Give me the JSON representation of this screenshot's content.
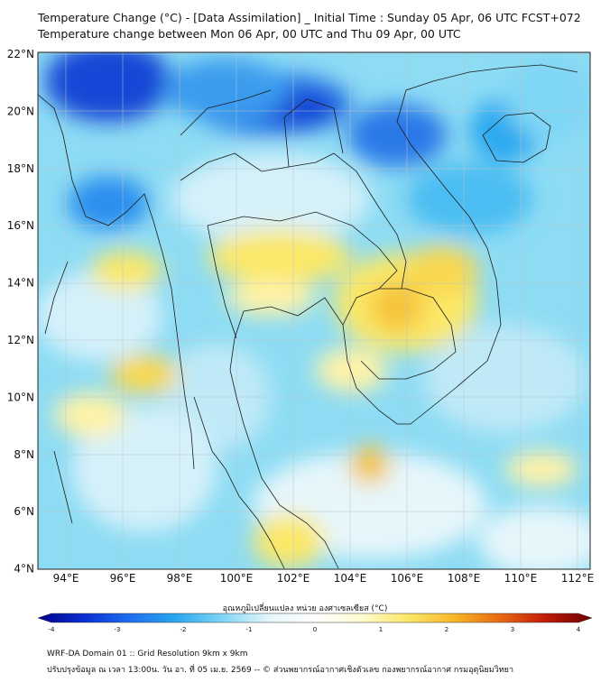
{
  "header": {
    "line1": "Temperature Change (°C) - [Data Assimilation] _ Initial Time : Sunday 05 Apr, 06 UTC FCST+072",
    "line2": "Temperature change between Mon 06 Apr, 00 UTC and Thu 09 Apr, 00 UTC"
  },
  "map": {
    "lat_labels": [
      "22°N",
      "20°N",
      "18°N",
      "16°N",
      "14°N",
      "12°N",
      "10°N",
      "8°N",
      "6°N",
      "4°N"
    ],
    "lon_labels": [
      "94°E",
      "96°E",
      "98°E",
      "100°E",
      "102°E",
      "104°E",
      "106°E",
      "108°E",
      "110°E",
      "112°E"
    ],
    "lat_range": [
      4,
      22
    ],
    "lon_range": [
      93,
      112.5
    ]
  },
  "colorbar": {
    "title": "อุณหภูมิเปลี่ยนแปลง หน่วย องศาเซลเซียส (°C)",
    "range": [
      -4,
      4
    ],
    "tick_labels": [
      "-4",
      "-3",
      "-2",
      "-1",
      "0",
      "1",
      "2",
      "3",
      "4"
    ],
    "colors": [
      "#00008b",
      "#0a2fd0",
      "#1e6ef0",
      "#2aa8f0",
      "#7fd6f5",
      "#e6f6fb",
      "#ffffff",
      "#fffbd0",
      "#fbe868",
      "#f6b82a",
      "#ea6a10",
      "#c01a0a",
      "#6b0000"
    ]
  },
  "footer": {
    "line1": "WRF-DA Domain 01 :: Grid Resolution 9km x 9km",
    "line2": "ปรับปรุงข้อมูล ณ เวลา 13:00น. วัน อา. ที่ 05 เม.ย. 2569 -- © ส่วนพยากรณ์อากาศเชิงตัวเลข กองพยากรณ์อากาศ กรมอุตุนิยมวิทยา"
  }
}
